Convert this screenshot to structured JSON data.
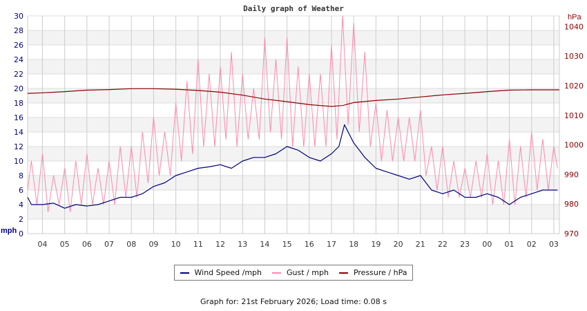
{
  "chart_data": {
    "type": "line",
    "title": "Daily graph of Weather",
    "left_axis": {
      "label": "mph",
      "range": [
        0,
        30
      ],
      "ticks": [
        0,
        2,
        4,
        6,
        8,
        10,
        12,
        14,
        16,
        18,
        20,
        22,
        24,
        26,
        28,
        30
      ],
      "color": "#000080"
    },
    "right_axis": {
      "label": "hPa",
      "range": [
        970,
        1043.6
      ],
      "ticks": [
        970,
        980,
        990,
        1000,
        1010,
        1020,
        1030,
        1040
      ],
      "color": "#8b0000"
    },
    "x_axis": {
      "range": [
        "03:20",
        "03:15"
      ],
      "tick_labels": [
        "04",
        "05",
        "06",
        "07",
        "08",
        "09",
        "10",
        "11",
        "12",
        "13",
        "14",
        "15",
        "16",
        "17",
        "18",
        "19",
        "20",
        "21",
        "22",
        "23",
        "00",
        "01",
        "02",
        "03"
      ]
    },
    "grid": true,
    "legend_placement": "bottom",
    "series": [
      {
        "name": "Wind Speed /mph",
        "color": "#000080",
        "axis": "left",
        "points": [
          [
            "03:20",
            5
          ],
          [
            "03:30",
            4
          ],
          [
            "04:00",
            4
          ],
          [
            "04:30",
            4.2
          ],
          [
            "05:00",
            3.5
          ],
          [
            "05:30",
            4
          ],
          [
            "06:00",
            3.8
          ],
          [
            "06:30",
            4
          ],
          [
            "07:00",
            4.5
          ],
          [
            "07:30",
            5
          ],
          [
            "08:00",
            5
          ],
          [
            "08:30",
            5.5
          ],
          [
            "09:00",
            6.5
          ],
          [
            "09:30",
            7
          ],
          [
            "10:00",
            8
          ],
          [
            "10:30",
            8.5
          ],
          [
            "11:00",
            9
          ],
          [
            "11:30",
            9.2
          ],
          [
            "12:00",
            9.5
          ],
          [
            "12:30",
            9
          ],
          [
            "13:00",
            10
          ],
          [
            "13:30",
            10.5
          ],
          [
            "14:00",
            10.5
          ],
          [
            "14:30",
            11
          ],
          [
            "15:00",
            12
          ],
          [
            "15:30",
            11.5
          ],
          [
            "16:00",
            10.5
          ],
          [
            "16:30",
            10
          ],
          [
            "17:00",
            11
          ],
          [
            "17:20",
            12
          ],
          [
            "17:35",
            15
          ],
          [
            "18:00",
            12.5
          ],
          [
            "18:30",
            10.5
          ],
          [
            "19:00",
            9
          ],
          [
            "19:30",
            8.5
          ],
          [
            "20:00",
            8
          ],
          [
            "20:30",
            7.5
          ],
          [
            "21:00",
            8
          ],
          [
            "21:30",
            6
          ],
          [
            "22:00",
            5.5
          ],
          [
            "22:30",
            6
          ],
          [
            "23:00",
            5
          ],
          [
            "23:30",
            5
          ],
          [
            "00:00",
            5.5
          ],
          [
            "00:30",
            5
          ],
          [
            "01:00",
            4
          ],
          [
            "01:30",
            5
          ],
          [
            "02:00",
            5.5
          ],
          [
            "02:30",
            6
          ],
          [
            "03:00",
            6
          ],
          [
            "03:10",
            6
          ]
        ]
      },
      {
        "name": "Gust / mph",
        "color": "#ff88aa",
        "axis": "left",
        "points": [
          [
            "03:20",
            6
          ],
          [
            "03:30",
            10
          ],
          [
            "03:45",
            4
          ],
          [
            "04:00",
            11
          ],
          [
            "04:15",
            3
          ],
          [
            "04:30",
            8
          ],
          [
            "04:45",
            4
          ],
          [
            "05:00",
            9
          ],
          [
            "05:15",
            3
          ],
          [
            "05:30",
            10
          ],
          [
            "05:45",
            4
          ],
          [
            "06:00",
            11
          ],
          [
            "06:15",
            4
          ],
          [
            "06:30",
            9
          ],
          [
            "06:45",
            4
          ],
          [
            "07:00",
            10
          ],
          [
            "07:15",
            4
          ],
          [
            "07:30",
            12
          ],
          [
            "07:45",
            5
          ],
          [
            "08:00",
            12
          ],
          [
            "08:15",
            5
          ],
          [
            "08:30",
            14
          ],
          [
            "08:45",
            7
          ],
          [
            "09:00",
            16
          ],
          [
            "09:15",
            8
          ],
          [
            "09:30",
            14
          ],
          [
            "09:45",
            8
          ],
          [
            "10:00",
            18
          ],
          [
            "10:15",
            10
          ],
          [
            "10:30",
            21
          ],
          [
            "10:45",
            11
          ],
          [
            "11:00",
            24
          ],
          [
            "11:15",
            12
          ],
          [
            "11:30",
            22
          ],
          [
            "11:45",
            12
          ],
          [
            "12:00",
            23
          ],
          [
            "12:15",
            13
          ],
          [
            "12:30",
            25
          ],
          [
            "12:45",
            12
          ],
          [
            "13:00",
            22
          ],
          [
            "13:15",
            13
          ],
          [
            "13:30",
            20
          ],
          [
            "13:45",
            13
          ],
          [
            "14:00",
            27
          ],
          [
            "14:15",
            14
          ],
          [
            "14:30",
            24
          ],
          [
            "14:45",
            13
          ],
          [
            "15:00",
            27
          ],
          [
            "15:15",
            12
          ],
          [
            "15:30",
            23
          ],
          [
            "15:45",
            12
          ],
          [
            "16:00",
            22
          ],
          [
            "16:15",
            12
          ],
          [
            "16:30",
            22
          ],
          [
            "16:45",
            12
          ],
          [
            "17:00",
            26
          ],
          [
            "17:15",
            13
          ],
          [
            "17:30",
            30
          ],
          [
            "17:45",
            15
          ],
          [
            "18:00",
            29
          ],
          [
            "18:15",
            14
          ],
          [
            "18:30",
            25
          ],
          [
            "18:45",
            12
          ],
          [
            "19:00",
            18
          ],
          [
            "19:15",
            10
          ],
          [
            "19:30",
            17
          ],
          [
            "19:45",
            10
          ],
          [
            "20:00",
            16
          ],
          [
            "20:15",
            10
          ],
          [
            "20:30",
            16
          ],
          [
            "20:45",
            10
          ],
          [
            "21:00",
            17
          ],
          [
            "21:15",
            8
          ],
          [
            "21:30",
            12
          ],
          [
            "21:45",
            6
          ],
          [
            "22:00",
            12
          ],
          [
            "22:15",
            5
          ],
          [
            "22:30",
            10
          ],
          [
            "22:45",
            5
          ],
          [
            "23:00",
            9
          ],
          [
            "23:15",
            5
          ],
          [
            "23:30",
            10
          ],
          [
            "23:45",
            5
          ],
          [
            "00:00",
            11
          ],
          [
            "00:15",
            4
          ],
          [
            "00:30",
            10
          ],
          [
            "00:45",
            4
          ],
          [
            "01:00",
            13
          ],
          [
            "01:15",
            4
          ],
          [
            "01:30",
            12
          ],
          [
            "01:45",
            5
          ],
          [
            "02:00",
            14
          ],
          [
            "02:15",
            6
          ],
          [
            "02:30",
            13
          ],
          [
            "02:45",
            6
          ],
          [
            "03:00",
            12
          ],
          [
            "03:10",
            9
          ]
        ]
      },
      {
        "name": "Pressure / hPa",
        "color": "#8b0000",
        "axis": "right",
        "points": [
          [
            "03:20",
            1017.4
          ],
          [
            "04:00",
            1017.6
          ],
          [
            "05:00",
            1018
          ],
          [
            "06:00",
            1018.5
          ],
          [
            "07:00",
            1018.7
          ],
          [
            "08:00",
            1019
          ],
          [
            "09:00",
            1019
          ],
          [
            "10:00",
            1018.8
          ],
          [
            "11:00",
            1018.4
          ],
          [
            "12:00",
            1017.8
          ],
          [
            "13:00",
            1016.8
          ],
          [
            "14:00",
            1015.5
          ],
          [
            "15:00",
            1014.6
          ],
          [
            "16:00",
            1013.6
          ],
          [
            "17:00",
            1013
          ],
          [
            "17:30",
            1013.3
          ],
          [
            "18:00",
            1014.3
          ],
          [
            "19:00",
            1015
          ],
          [
            "20:00",
            1015.5
          ],
          [
            "21:00",
            1016.2
          ],
          [
            "22:00",
            1016.9
          ],
          [
            "23:00",
            1017.4
          ],
          [
            "00:00",
            1018
          ],
          [
            "01:00",
            1018.5
          ],
          [
            "02:00",
            1018.6
          ],
          [
            "03:00",
            1018.6
          ],
          [
            "03:15",
            1018.6
          ]
        ]
      }
    ]
  },
  "footer": "Graph for: 21st February 2026; Load time: 0.08 s"
}
